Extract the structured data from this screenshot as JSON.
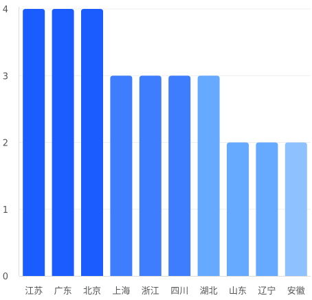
{
  "chart_data": {
    "type": "bar",
    "title": "",
    "xlabel": "",
    "ylabel": "",
    "categories": [
      "江苏",
      "广东",
      "北京",
      "上海",
      "浙江",
      "四川",
      "湖北",
      "山东",
      "辽宁",
      "安徽"
    ],
    "values": [
      4,
      4,
      4,
      3,
      3,
      3,
      3,
      2,
      2,
      2
    ],
    "bar_colors": [
      "#1a5cff",
      "#1a5cff",
      "#1a5cff",
      "#3f7dff",
      "#3f7dff",
      "#3f7dff",
      "#66aaff",
      "#66aaff",
      "#66aaff",
      "#8ec1ff"
    ],
    "ylim": [
      0,
      4
    ],
    "yticks": [
      0,
      1,
      2,
      3,
      4
    ],
    "grid": true,
    "legend": "none"
  }
}
